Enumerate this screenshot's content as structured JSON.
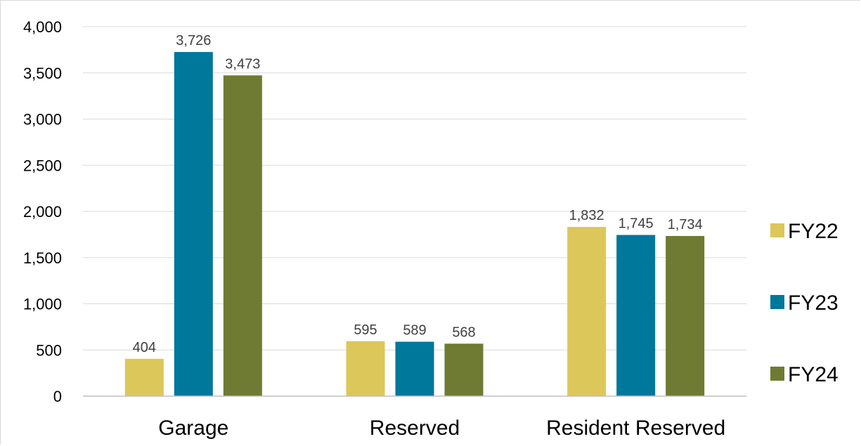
{
  "chart_data": {
    "type": "bar",
    "categories": [
      "Garage",
      "Reserved",
      "Resident Reserved"
    ],
    "series": [
      {
        "name": "FY22",
        "color": "#dcc75a",
        "values": [
          404,
          595,
          1832
        ]
      },
      {
        "name": "FY23",
        "color": "#00789b",
        "values": [
          3726,
          589,
          1745
        ]
      },
      {
        "name": "FY24",
        "color": "#6f7a33",
        "values": [
          3473,
          568,
          1734
        ]
      }
    ],
    "data_labels": [
      [
        "404",
        "595",
        "1,832"
      ],
      [
        "3,726",
        "589",
        "1,745"
      ],
      [
        "3,473",
        "568",
        "1,734"
      ]
    ],
    "yticks": [
      "0",
      "500",
      "1,000",
      "1,500",
      "2,000",
      "2,500",
      "3,000",
      "3,500",
      "4,000"
    ],
    "ylim": [
      0,
      4000
    ],
    "grid": true,
    "legend_position": "right",
    "title": "",
    "xlabel": "",
    "ylabel": ""
  }
}
